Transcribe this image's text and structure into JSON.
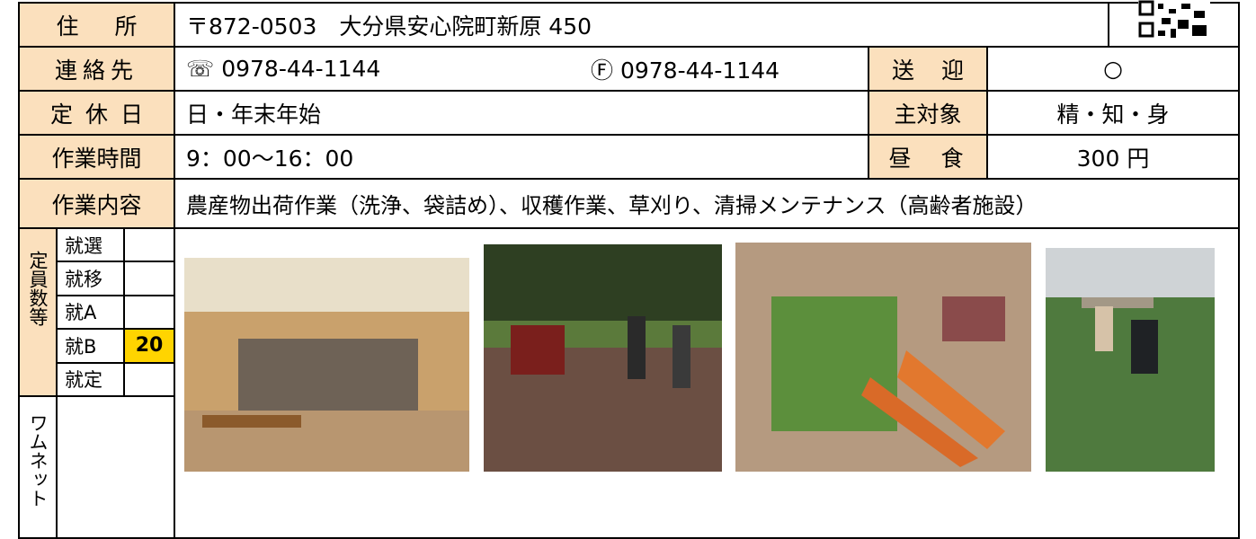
{
  "rows": [
    {
      "label": "住所",
      "value": "〒872-0503　大分県安心院町新原 450"
    },
    {
      "label": "連絡先",
      "tel": "☏ 0978-44-1144",
      "fax": "Ⓕ 0978-44-1144",
      "sub_label": "送迎",
      "sub_value": "○"
    },
    {
      "label": "定休日",
      "value": "日・年末年始",
      "sub_label": "主対象",
      "sub_value": "精・知・身"
    },
    {
      "label": "作業時間",
      "value": "9：00～16：00",
      "sub_label": "昼　食",
      "sub_value": "300 円"
    },
    {
      "label": "作業内容",
      "value": "農産物出荷作業（洗浄、袋詰め）、収穫作業、草刈り、清掃メンテナンス（高齢者施設）"
    }
  ],
  "capacity": {
    "label": "定員数等",
    "items": [
      {
        "label": "就選"
      },
      {
        "label": "就移"
      },
      {
        "label": "就A"
      },
      {
        "label": "就B",
        "value": 20
      },
      {
        "label": "就定"
      }
    ]
  },
  "wamnet": {
    "label": "ワムネット"
  }
}
